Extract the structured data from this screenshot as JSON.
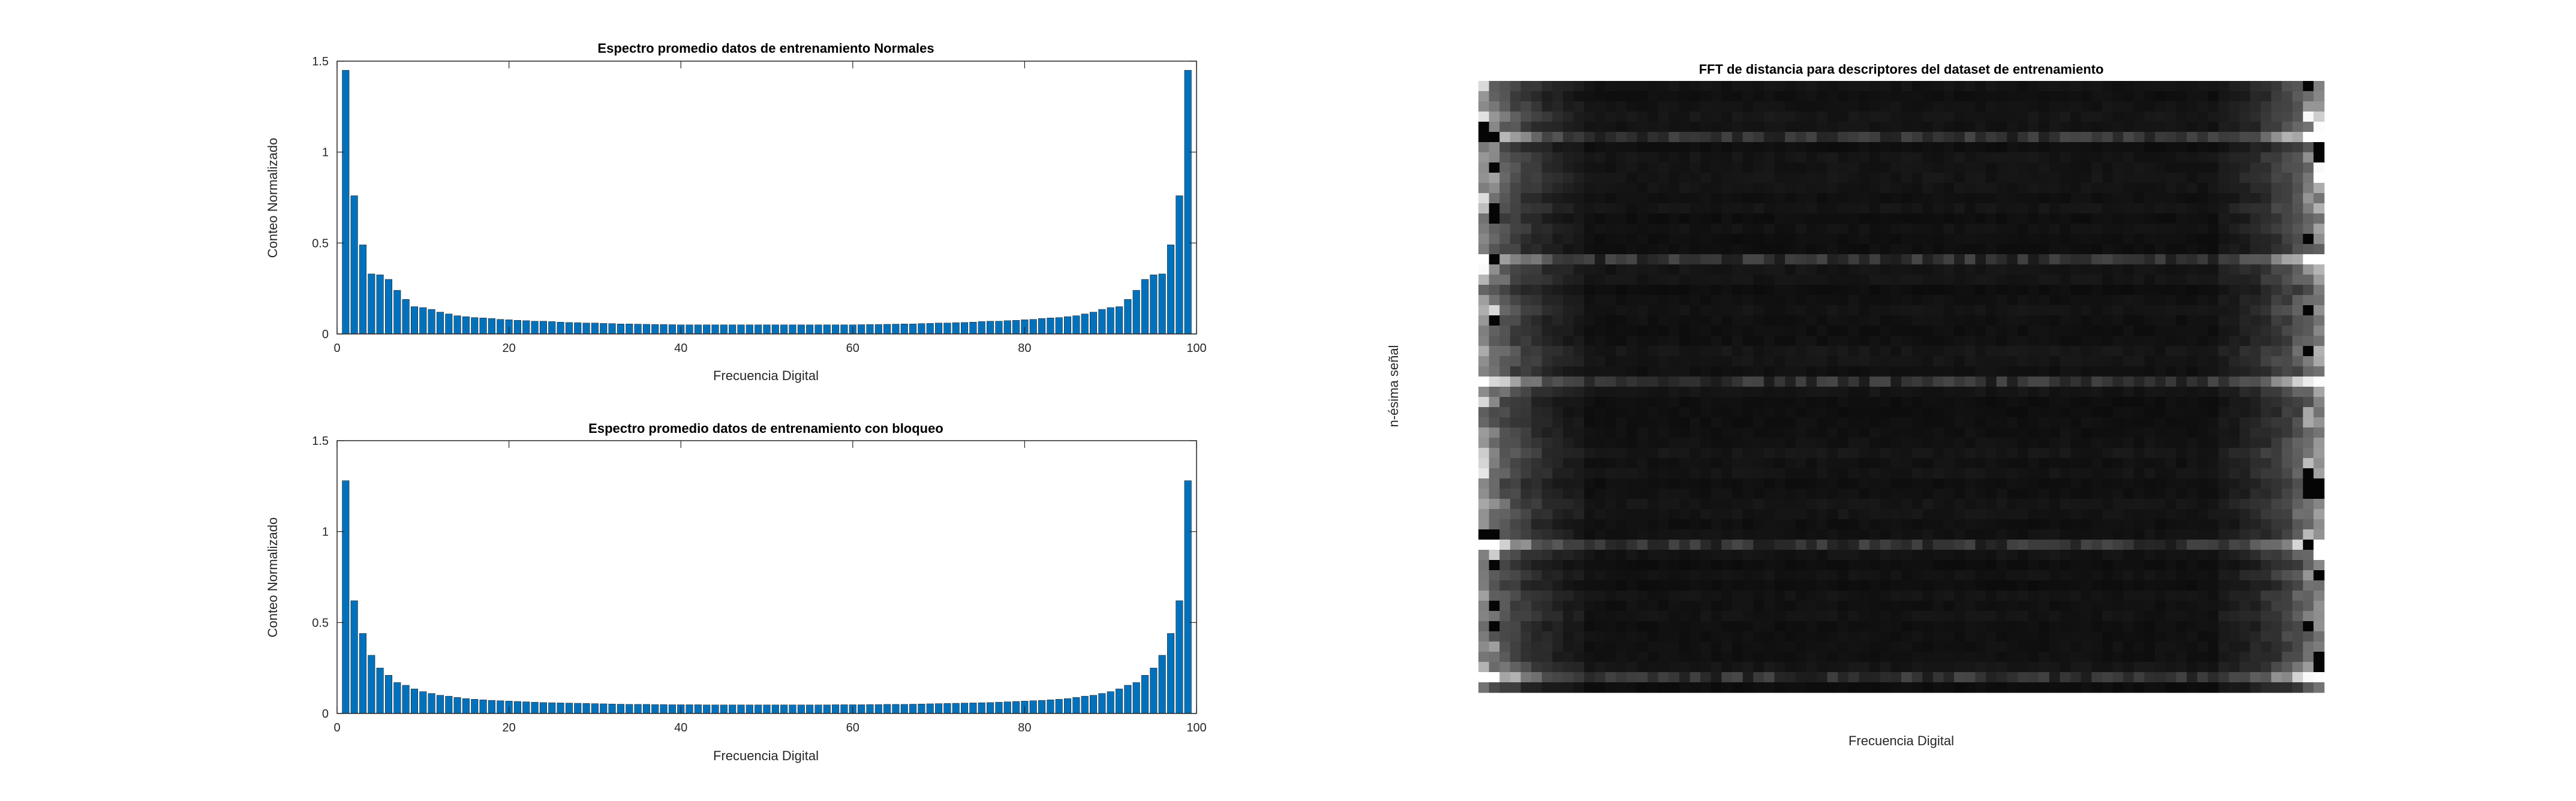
{
  "figure": {
    "background": "#ffffff"
  },
  "chart_data": [
    {
      "type": "bar",
      "title": "Espectro promedio datos de entrenamiento Normales",
      "xlabel": "Frecuencia Digital",
      "ylabel": "Conteo Normalizado",
      "xlim": [
        0,
        100
      ],
      "ylim": [
        0,
        1.5
      ],
      "xticks": [
        "0",
        "20",
        "40",
        "60",
        "80",
        "100"
      ],
      "yticks": [
        "0",
        "0.5",
        "1",
        "1.5"
      ],
      "bar_color": "#0072BD",
      "x": [
        1,
        2,
        3,
        4,
        5,
        6,
        7,
        8,
        9,
        10,
        11,
        12,
        13,
        14,
        15,
        16,
        17,
        18,
        19,
        20,
        21,
        22,
        23,
        24,
        25,
        26,
        27,
        28,
        29,
        30,
        31,
        32,
        33,
        34,
        35,
        36,
        37,
        38,
        39,
        40,
        41,
        42,
        43,
        44,
        45,
        46,
        47,
        48,
        49,
        50,
        51,
        52,
        53,
        54,
        55,
        56,
        57,
        58,
        59,
        60,
        61,
        62,
        63,
        64,
        65,
        66,
        67,
        68,
        69,
        70,
        71,
        72,
        73,
        74,
        75,
        76,
        77,
        78,
        79,
        80,
        81,
        82,
        83,
        84,
        85,
        86,
        87,
        88,
        89,
        90,
        91,
        92,
        93,
        94,
        95,
        96,
        97,
        98,
        99
      ],
      "values": [
        1.45,
        0.76,
        0.49,
        0.33,
        0.325,
        0.3,
        0.24,
        0.19,
        0.15,
        0.145,
        0.135,
        0.12,
        0.11,
        0.1,
        0.095,
        0.09,
        0.088,
        0.085,
        0.08,
        0.078,
        0.075,
        0.073,
        0.07,
        0.07,
        0.068,
        0.065,
        0.063,
        0.062,
        0.06,
        0.06,
        0.058,
        0.057,
        0.055,
        0.055,
        0.054,
        0.053,
        0.052,
        0.052,
        0.051,
        0.05,
        0.05,
        0.05,
        0.05,
        0.05,
        0.05,
        0.05,
        0.05,
        0.05,
        0.05,
        0.05,
        0.05,
        0.05,
        0.05,
        0.05,
        0.05,
        0.05,
        0.05,
        0.05,
        0.05,
        0.05,
        0.051,
        0.052,
        0.052,
        0.053,
        0.054,
        0.055,
        0.055,
        0.057,
        0.058,
        0.06,
        0.06,
        0.062,
        0.063,
        0.065,
        0.068,
        0.07,
        0.07,
        0.073,
        0.075,
        0.078,
        0.08,
        0.085,
        0.088,
        0.09,
        0.095,
        0.1,
        0.11,
        0.12,
        0.135,
        0.145,
        0.15,
        0.19,
        0.24,
        0.3,
        0.325,
        0.33,
        0.49,
        0.76,
        1.45
      ]
    },
    {
      "type": "bar",
      "title": "Espectro promedio datos de entrenamiento con bloqueo",
      "xlabel": "Frecuencia Digital",
      "ylabel": "Conteo Normalizado",
      "xlim": [
        0,
        100
      ],
      "ylim": [
        0,
        1.5
      ],
      "xticks": [
        "0",
        "20",
        "40",
        "60",
        "80",
        "100"
      ],
      "yticks": [
        "0",
        "0.5",
        "1",
        "1.5"
      ],
      "bar_color": "#0072BD",
      "x": [
        1,
        2,
        3,
        4,
        5,
        6,
        7,
        8,
        9,
        10,
        11,
        12,
        13,
        14,
        15,
        16,
        17,
        18,
        19,
        20,
        21,
        22,
        23,
        24,
        25,
        26,
        27,
        28,
        29,
        30,
        31,
        32,
        33,
        34,
        35,
        36,
        37,
        38,
        39,
        40,
        41,
        42,
        43,
        44,
        45,
        46,
        47,
        48,
        49,
        50,
        51,
        52,
        53,
        54,
        55,
        56,
        57,
        58,
        59,
        60,
        61,
        62,
        63,
        64,
        65,
        66,
        67,
        68,
        69,
        70,
        71,
        72,
        73,
        74,
        75,
        76,
        77,
        78,
        79,
        80,
        81,
        82,
        83,
        84,
        85,
        86,
        87,
        88,
        89,
        90,
        91,
        92,
        93,
        94,
        95,
        96,
        97,
        98,
        99
      ],
      "values": [
        1.28,
        0.62,
        0.44,
        0.32,
        0.25,
        0.21,
        0.17,
        0.155,
        0.135,
        0.12,
        0.11,
        0.1,
        0.095,
        0.088,
        0.082,
        0.078,
        0.075,
        0.072,
        0.07,
        0.068,
        0.066,
        0.064,
        0.062,
        0.06,
        0.059,
        0.058,
        0.057,
        0.056,
        0.055,
        0.054,
        0.053,
        0.052,
        0.051,
        0.05,
        0.05,
        0.05,
        0.049,
        0.049,
        0.048,
        0.048,
        0.048,
        0.048,
        0.047,
        0.047,
        0.047,
        0.047,
        0.047,
        0.047,
        0.047,
        0.047,
        0.047,
        0.047,
        0.047,
        0.047,
        0.047,
        0.047,
        0.047,
        0.048,
        0.048,
        0.048,
        0.048,
        0.049,
        0.049,
        0.05,
        0.05,
        0.05,
        0.051,
        0.052,
        0.053,
        0.054,
        0.055,
        0.056,
        0.057,
        0.058,
        0.059,
        0.06,
        0.062,
        0.064,
        0.066,
        0.068,
        0.07,
        0.072,
        0.075,
        0.078,
        0.082,
        0.088,
        0.095,
        0.1,
        0.11,
        0.12,
        0.135,
        0.155,
        0.17,
        0.21,
        0.25,
        0.32,
        0.44,
        0.62,
        1.28
      ]
    },
    {
      "type": "heatmap",
      "title": "FFT de distancia para descriptores del dataset de entrenamiento",
      "xlabel": "Frecuencia Digital",
      "ylabel": "n-ésima señal",
      "colormap": "gray",
      "n_cols": 80,
      "n_rows": 60,
      "bright_rows": [
        5,
        17,
        29,
        45,
        58
      ],
      "edge_profile": [
        0.55,
        0.42,
        0.33,
        0.27,
        0.22,
        0.18,
        0.15,
        0.13,
        0.11,
        0.1
      ],
      "center_level": 0.07
    }
  ]
}
